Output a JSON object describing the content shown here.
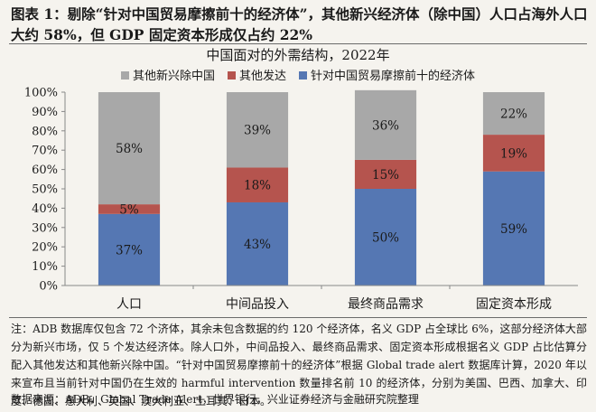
{
  "figure": {
    "title": "图表 1：剔除“针对中国贸易摩擦前十的经济体”，其他新兴经济体（除中国）人口占海外人口大约 58%，但 GDP 固定资本形成仅占约 22%",
    "note": "注：ADB 数据库仅包含 72 个济体，其余未包含数据的约 120 个经济体，名义 GDP 占全球比 6%，这部分经济体大部分为新兴市场，仅 5 个发达经济体。除人口外，中间品投入、最终商品需求、固定资本形成根据名义 GDP 占比估算分配入其他发达和其他新兴除中国。“针对中国贸易摩擦前十的经济体”根据 Global trade alert 数据库计算，2020 年以来宣布且当前针对中国仍在生效的 harmful intervention 数量排名前 10 的经济体，分别为美国、巴西、加拿大、印度、德国、意大利、英国、澳大利亚、土耳其、日本。",
    "source": "数据来源：ADB，Global Trade Alert，世界银行，兴业证券经济与金融研究院整理"
  },
  "colors": {
    "other_emerging": "#a8a8a8",
    "other_developed": "#b5544e",
    "top10": "#5577b3",
    "axis": "#888888"
  },
  "chart_data": {
    "type": "bar",
    "stacked": true,
    "title": "中国面对的外需结构，2022年",
    "categories": [
      "人口",
      "中间品投入",
      "最终商品需求",
      "固定资本形成"
    ],
    "series": [
      {
        "name": "针对中国贸易摩擦前十的经济体",
        "values": [
          37,
          43,
          50,
          59
        ],
        "color": "#5577b3"
      },
      {
        "name": "其他发达",
        "values": [
          5,
          18,
          15,
          19
        ],
        "color": "#b5544e"
      },
      {
        "name": "其他新兴除中国",
        "values": [
          58,
          39,
          36,
          22
        ],
        "color": "#a8a8a8"
      }
    ],
    "legend_order": [
      "其他新兴除中国",
      "其他发达",
      "针对中国贸易摩擦前十的经济体"
    ],
    "legend_position": "top",
    "ylim": [
      0,
      100
    ],
    "yticks": [
      0,
      10,
      20,
      30,
      40,
      50,
      60,
      70,
      80,
      90,
      100
    ],
    "ytick_labels": [
      "0%",
      "10%",
      "20%",
      "30%",
      "40%",
      "50%",
      "60%",
      "70%",
      "80%",
      "90%",
      "100%"
    ],
    "data_labels": [
      [
        "37%",
        "43%",
        "50%",
        "59%"
      ],
      [
        "5%",
        "18%",
        "15%",
        "19%"
      ],
      [
        "58%",
        "39%",
        "36%",
        "22%"
      ]
    ],
    "grid": false
  }
}
